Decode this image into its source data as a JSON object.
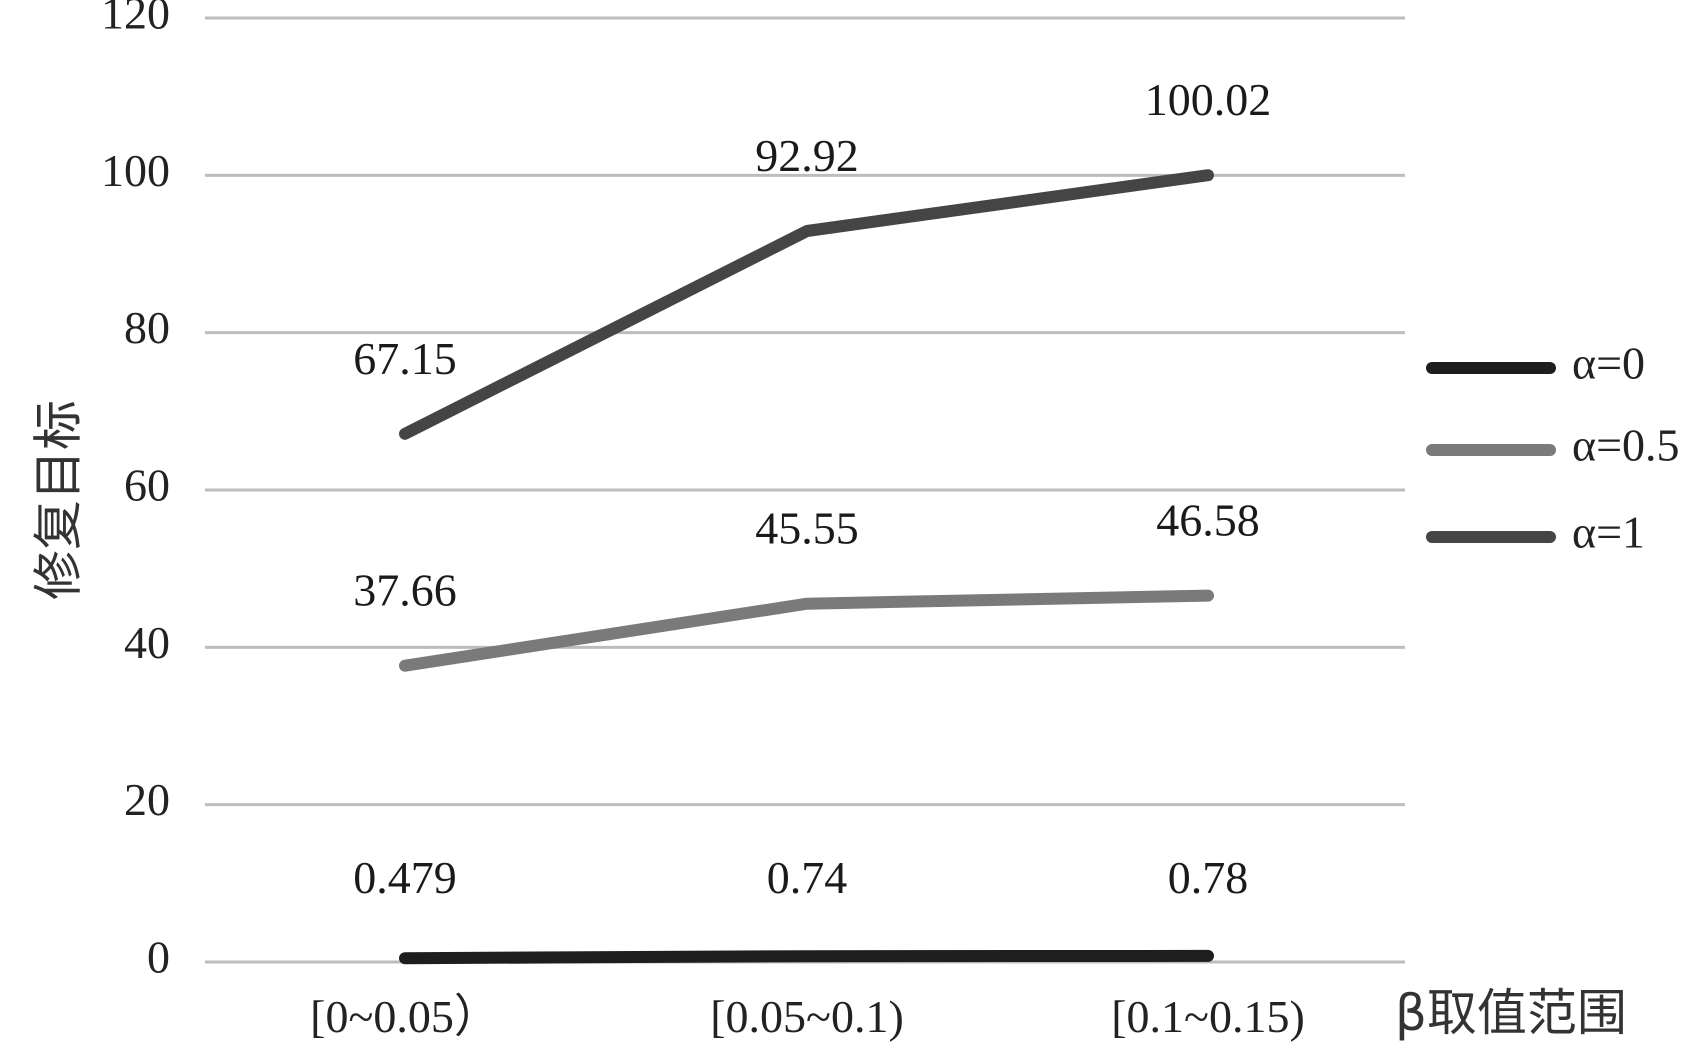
{
  "chart_data": {
    "type": "line",
    "categories": [
      "[0~0.05）",
      "[0.05~0.1)",
      "[0.1~0.15)"
    ],
    "series": [
      {
        "name": "α=0",
        "values": [
          0.479,
          0.74,
          0.78
        ],
        "labels": [
          "0.479",
          "0.74",
          "0.78"
        ],
        "color": "#1e1e1e"
      },
      {
        "name": "α=0.5",
        "values": [
          37.66,
          45.55,
          46.58
        ],
        "labels": [
          "37.66",
          "45.55",
          "46.58"
        ],
        "color": "#7a7a7a"
      },
      {
        "name": "α=1",
        "values": [
          67.15,
          92.92,
          100.02
        ],
        "labels": [
          "67.15",
          "92.92",
          "100.02"
        ],
        "color": "#454545"
      }
    ],
    "xlabel": "β取值范围",
    "ylabel": "修复目标",
    "ylim": [
      0,
      120
    ],
    "yticks": [
      0,
      20,
      40,
      60,
      80,
      100,
      120
    ],
    "grid": true,
    "legend_position": "right",
    "gridline_color": "#bdbdbd"
  }
}
